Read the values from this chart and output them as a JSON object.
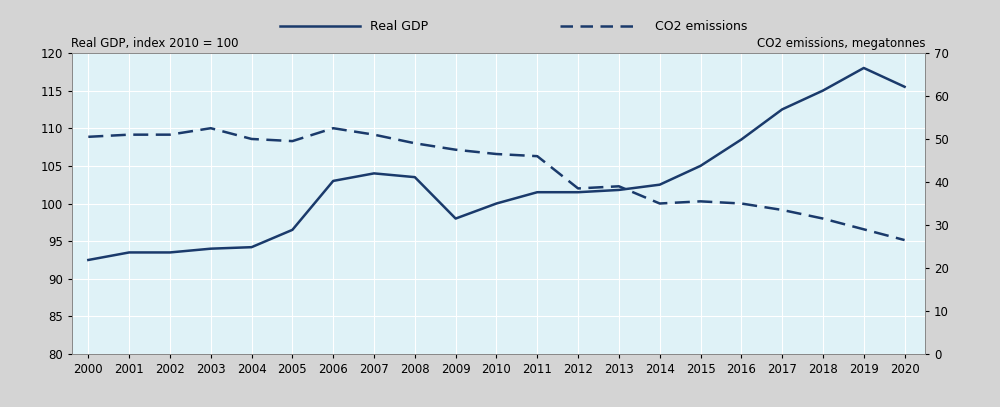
{
  "years": [
    2000,
    2001,
    2002,
    2003,
    2004,
    2005,
    2006,
    2007,
    2008,
    2009,
    2010,
    2011,
    2012,
    2013,
    2014,
    2015,
    2016,
    2017,
    2018,
    2019,
    2020
  ],
  "gdp": [
    92.5,
    93.5,
    93.5,
    94.0,
    94.2,
    96.5,
    103.0,
    104.0,
    103.5,
    98.0,
    100.0,
    101.5,
    101.5,
    101.8,
    102.5,
    105.0,
    108.5,
    112.5,
    115.0,
    118.0,
    115.5
  ],
  "co2": [
    50.5,
    51.0,
    51.0,
    52.5,
    50.0,
    49.5,
    52.5,
    51.0,
    49.0,
    47.5,
    46.5,
    46.0,
    38.5,
    39.0,
    35.0,
    35.5,
    35.0,
    33.5,
    31.5,
    29.0,
    26.5
  ],
  "line_color": "#1a3a6b",
  "background_color": "#dff2f7",
  "legend_background": "#d4d4d4",
  "left_ylabel": "Real GDP, index 2010 = 100",
  "right_ylabel": "CO2 emissions, megatonnes",
  "left_ylim": [
    80,
    120
  ],
  "right_ylim": [
    0,
    70
  ],
  "left_yticks": [
    80,
    85,
    90,
    95,
    100,
    105,
    110,
    115,
    120
  ],
  "right_yticks": [
    0,
    10,
    20,
    30,
    40,
    50,
    60,
    70
  ],
  "legend_gdp": "Real GDP",
  "legend_co2": "CO2 emissions",
  "grid_color": "#c8e8f0",
  "line_width": 1.8
}
